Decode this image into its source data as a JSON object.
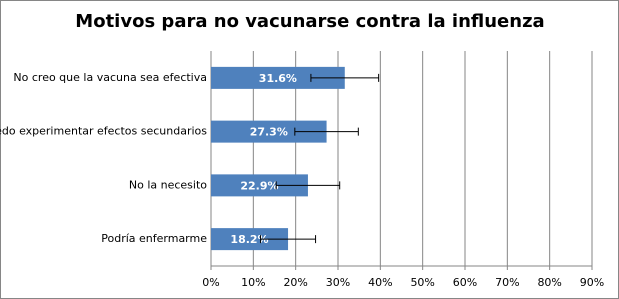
{
  "chart_data": {
    "type": "bar",
    "orientation": "horizontal",
    "title": "Motivos para no vacunarse contra la influenza",
    "categories": [
      "No creo que la vacuna sea efectiva",
      "Puedo experimentar efectos secundarios",
      "No la necesito",
      "Podría enfermarme"
    ],
    "values": [
      31.6,
      27.3,
      22.9,
      18.2
    ],
    "value_labels": [
      "31.6%",
      "27.3%",
      "22.9%",
      "18.2%"
    ],
    "errors": [
      8,
      7.5,
      7.5,
      6.5
    ],
    "color": "#4f81bd",
    "xlim": [
      0,
      90
    ],
    "xticks": [
      {
        "value": 0,
        "label": "0%"
      },
      {
        "value": 10,
        "label": "10%"
      },
      {
        "value": 20,
        "label": "20%"
      },
      {
        "value": 30,
        "label": "30%"
      },
      {
        "value": 40,
        "label": "40%"
      },
      {
        "value": 50,
        "label": "50%"
      },
      {
        "value": 60,
        "label": "60%"
      },
      {
        "value": 70,
        "label": "70%"
      },
      {
        "value": 80,
        "label": "80%"
      },
      {
        "value": 90,
        "label": "90%"
      }
    ],
    "grid": true
  }
}
